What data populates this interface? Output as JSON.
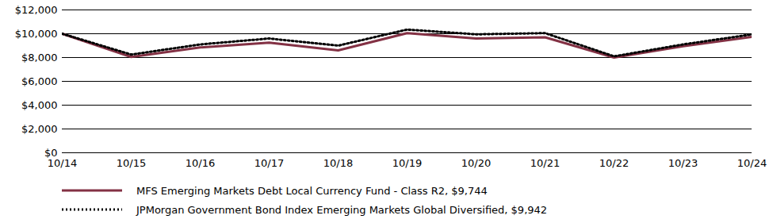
{
  "chart_data": {
    "type": "line",
    "categories": [
      "10/14",
      "10/15",
      "10/16",
      "10/17",
      "10/18",
      "10/19",
      "10/20",
      "10/21",
      "10/22",
      "10/23",
      "10/24"
    ],
    "series": [
      {
        "name": "MFS Emerging Markets Debt Local Currency Fund - Class R2, $9,744",
        "color": "#833144",
        "line_style": "solid",
        "values": [
          10000,
          8050,
          8850,
          9250,
          8600,
          10050,
          9600,
          9700,
          8000,
          8950,
          9744
        ]
      },
      {
        "name": "JPMorgan Government Bond Index Emerging Markets Global Diversified, $9,942",
        "color": "#000000",
        "line_style": "dotted",
        "values": [
          10000,
          8250,
          9100,
          9600,
          9000,
          10350,
          9950,
          10050,
          8100,
          9100,
          9942
        ]
      }
    ],
    "ylim": [
      0,
      12000
    ],
    "yticks": [
      {
        "value": 0,
        "label": "$0"
      },
      {
        "value": 2000,
        "label": "$2,000"
      },
      {
        "value": 4000,
        "label": "$4,000"
      },
      {
        "value": 6000,
        "label": "$6,000"
      },
      {
        "value": 8000,
        "label": "$8,000"
      },
      {
        "value": 10000,
        "label": "$10,000"
      },
      {
        "value": 12000,
        "label": "$12,000"
      }
    ],
    "grid": true,
    "legend": "bottom"
  }
}
